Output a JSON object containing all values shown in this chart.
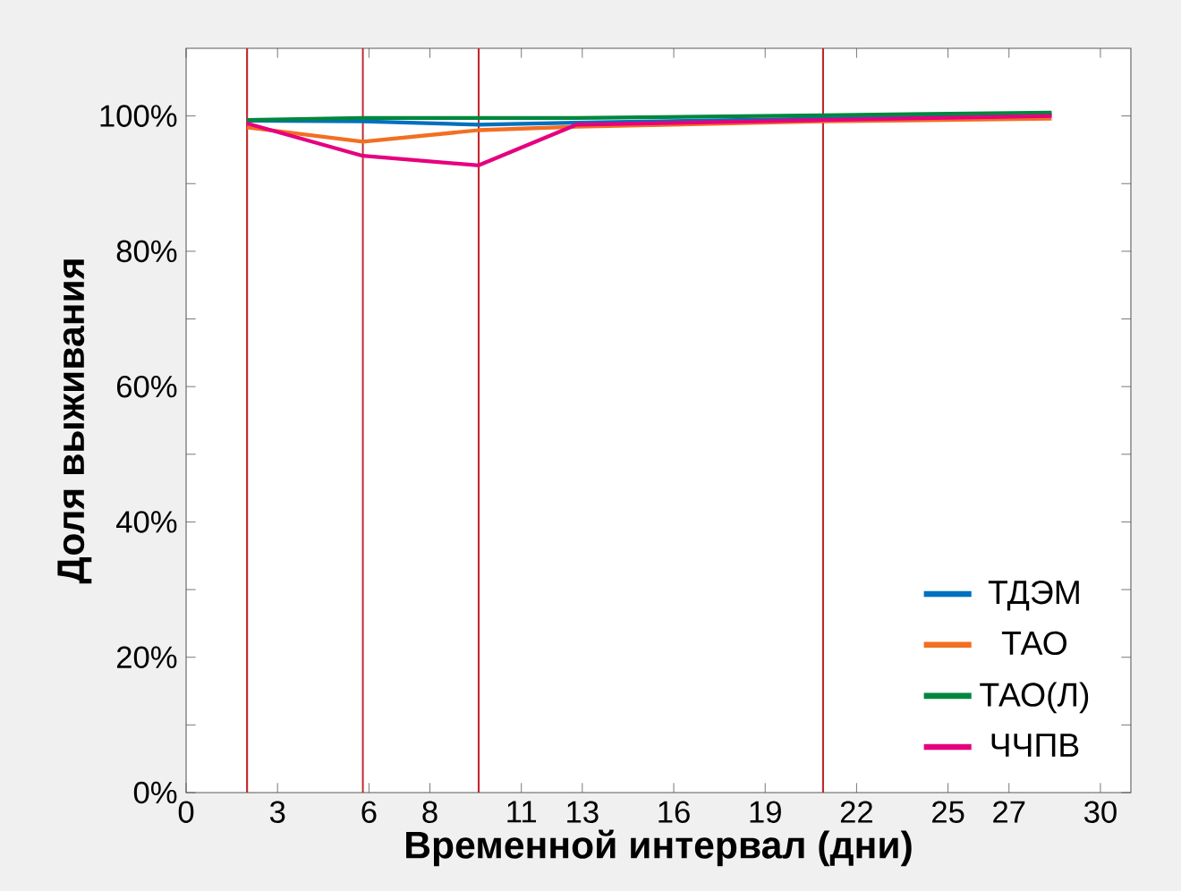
{
  "chart_data": {
    "type": "line",
    "xlabel": "Временной интервал (дни)",
    "ylabel": "Доля выживания",
    "xlim": [
      0,
      31
    ],
    "xticks": [
      0,
      3,
      6,
      8,
      11,
      13,
      16,
      19,
      22,
      25,
      27,
      30
    ],
    "ylim": [
      0,
      110
    ],
    "yticks": [
      {
        "value": 0,
        "label": "0%"
      },
      {
        "value": 10,
        "label": null
      },
      {
        "value": 20,
        "label": "20%"
      },
      {
        "value": 30,
        "label": null
      },
      {
        "value": 40,
        "label": "40%"
      },
      {
        "value": 50,
        "label": null
      },
      {
        "value": 60,
        "label": "60%"
      },
      {
        "value": 70,
        "label": null
      },
      {
        "value": 80,
        "label": "80%"
      },
      {
        "value": 90,
        "label": null
      },
      {
        "value": 100,
        "label": "100%"
      }
    ],
    "x": [
      2,
      5.8,
      9.6,
      12.8,
      20.9,
      28.4
    ],
    "series": [
      {
        "name": "ТДЭМ",
        "color": "#0070c0",
        "values": [
          99.3,
          99.2,
          98.7,
          99.0,
          99.6,
          100.2
        ]
      },
      {
        "name": "ТАО",
        "color": "#f26f21",
        "values": [
          98.3,
          96.2,
          97.9,
          98.4,
          99.2,
          99.6
        ]
      },
      {
        "name": "ТАО(Л)",
        "color": "#00873e",
        "values": [
          99.4,
          99.7,
          99.7,
          99.7,
          100.1,
          100.5
        ]
      },
      {
        "name": "ЧЧПВ",
        "color": "#e6007e",
        "values": [
          98.9,
          94.1,
          92.7,
          98.7,
          99.4,
          100.0
        ]
      }
    ],
    "ref_lines": [
      {
        "axis": "x",
        "value": 2,
        "color": "#c0282d"
      },
      {
        "axis": "x",
        "value": 5.8,
        "color": "#c0282d"
      },
      {
        "axis": "x",
        "value": 9.6,
        "color": "#c0282d"
      },
      {
        "axis": "x",
        "value": 20.9,
        "color": "#c0282d"
      }
    ],
    "legend": "bottom right",
    "grid": false,
    "marker": "none",
    "line_style": "solid"
  }
}
